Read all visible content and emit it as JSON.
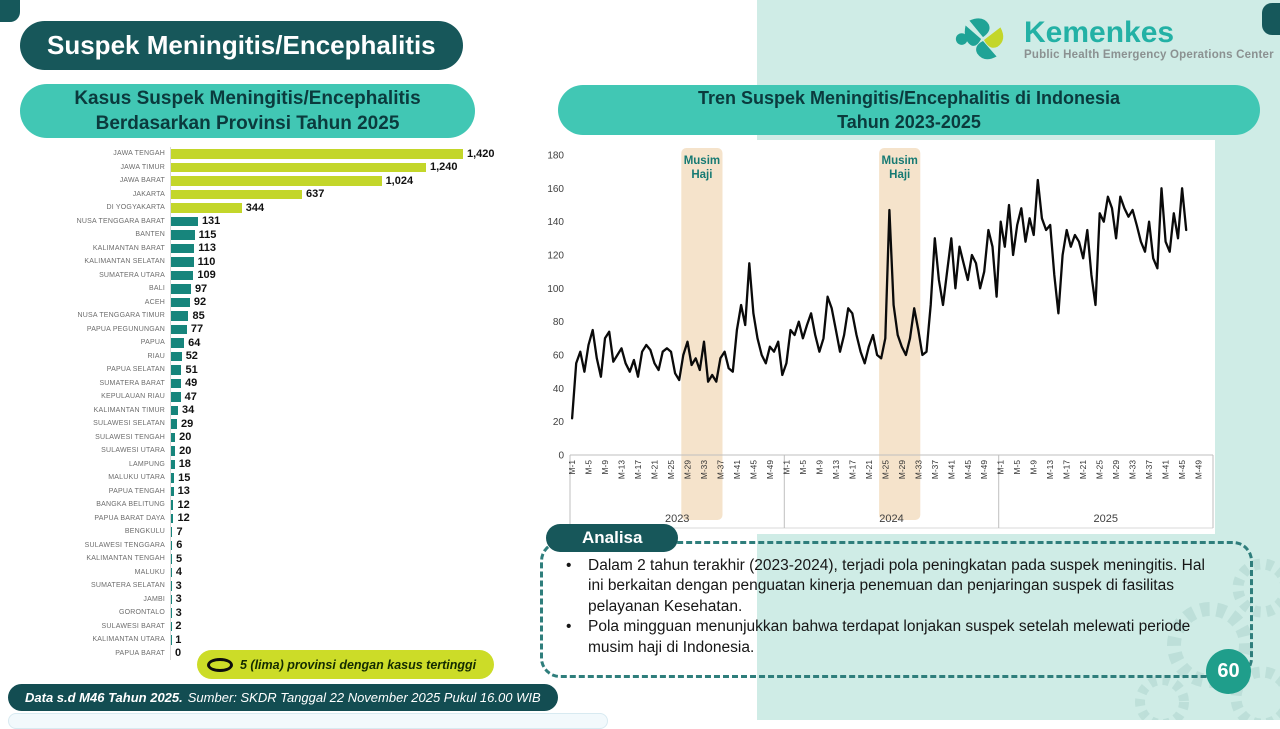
{
  "page": {
    "title": "Suspek Meningitis/Encephalitis",
    "page_number": "60",
    "footer_bold": "Data s.d M46 Tahun 2025.",
    "footer_rest": "Sumber: SKDR Tanggal 22 November 2025 Pukul 16.00 WIB"
  },
  "logo": {
    "name": "Kemenkes",
    "subtitle": "Public Health Emergency Operations Center"
  },
  "left_panel": {
    "title_line1": "Kasus Suspek Meningitis/Encephalitis",
    "title_line2": "Berdasarkan Provinsi Tahun 2025",
    "legend_label": "5 (lima) provinsi dengan kasus tertinggi"
  },
  "right_panel": {
    "title_line1": "Tren Suspek Meningitis/Encephalitis di Indonesia",
    "title_line2": "Tahun 2023-2025"
  },
  "analysis": {
    "header": "Analisa",
    "bullets": [
      "Dalam 2 tahun terakhir (2023-2024), terjadi pola peningkatan pada suspek meningitis. Hal ini berkaitan dengan penguatan kinerja penemuan dan penjaringan suspek di fasilitas pelayanan Kesehatan.",
      "Pola mingguan menunjukkan bahwa terdapat lonjakan suspek setelah melewati periode musim haji di Indonesia."
    ]
  },
  "colors": {
    "dark_teal": "#17575a",
    "accent_teal": "#41c7b4",
    "mint": "#cfece6",
    "bar_green": "#c3d62a",
    "bar_teal": "#17857c",
    "haji_band": "#f5e3cb",
    "haji_text": "#177a73",
    "line": "#0a0a0a",
    "legend_green": "#ccdc28",
    "page_circle": "#1f9e8b"
  },
  "chart_data": [
    {
      "type": "bar",
      "orientation": "horizontal",
      "title": "Kasus Suspek Meningitis/Encephalitis Berdasarkan Provinsi Tahun 2025",
      "highlight_top_n": 5,
      "highlight_note": "5 (lima) provinsi dengan kasus tertinggi",
      "categories": [
        "JAWA TENGAH",
        "JAWA TIMUR",
        "JAWA BARAT",
        "JAKARTA",
        "DI YOGYAKARTA",
        "NUSA TENGGARA BARAT",
        "BANTEN",
        "KALIMANTAN BARAT",
        "KALIMANTAN SELATAN",
        "SUMATERA UTARA",
        "BALI",
        "ACEH",
        "NUSA TENGGARA TIMUR",
        "PAPUA PEGUNUNGAN",
        "PAPUA",
        "RIAU",
        "PAPUA SELATAN",
        "SUMATERA BARAT",
        "KEPULAUAN RIAU",
        "KALIMANTAN TIMUR",
        "SULAWESI SELATAN",
        "SULAWESI TENGAH",
        "SULAWESI UTARA",
        "LAMPUNG",
        "MALUKU UTARA",
        "PAPUA TENGAH",
        "BANGKA BELITUNG",
        "PAPUA BARAT DAYA",
        "BENGKULU",
        "SULAWESI TENGGARA",
        "KALIMANTAN TENGAH",
        "MALUKU",
        "SUMATERA SELATAN",
        "JAMBI",
        "GORONTALO",
        "SULAWESI BARAT",
        "KALIMANTAN UTARA",
        "PAPUA BARAT"
      ],
      "values": [
        1420,
        1240,
        1024,
        637,
        344,
        131,
        115,
        113,
        110,
        109,
        97,
        92,
        85,
        77,
        64,
        52,
        51,
        49,
        47,
        34,
        29,
        20,
        20,
        18,
        15,
        13,
        12,
        12,
        7,
        6,
        5,
        4,
        3,
        3,
        3,
        2,
        1,
        0
      ]
    },
    {
      "type": "line",
      "title": "Tren Suspek Meningitis/Encephalitis di Indonesia Tahun 2023-2025",
      "ylim": [
        0,
        180
      ],
      "ytick_step": 20,
      "grid": false,
      "x_axis": {
        "years": [
          "2023",
          "2024",
          "2025"
        ],
        "weeks_per_year": 52,
        "tick_labels": [
          "M-1",
          "M-5",
          "M-9",
          "M-13",
          "M-17",
          "M-21",
          "M-25",
          "M-29",
          "M-33",
          "M-37",
          "M-41",
          "M-45",
          "M-49"
        ]
      },
      "bands": [
        {
          "label_line1": "Musim",
          "label_line2": "Haji",
          "start_week_index": 27,
          "end_week_index": 37
        },
        {
          "label_line1": "Musim",
          "label_line2": "Haji",
          "start_week_index": 75,
          "end_week_index": 85
        }
      ],
      "series": [
        {
          "name": "2023",
          "values": [
            22,
            55,
            62,
            50,
            66,
            75,
            58,
            47,
            70,
            74,
            56,
            60,
            64,
            55,
            50,
            57,
            47,
            62,
            66,
            63,
            55,
            51,
            62,
            64,
            62,
            49,
            45,
            60,
            68,
            54,
            58,
            51,
            68,
            44,
            48,
            44,
            58,
            62,
            52,
            50,
            75,
            90,
            78,
            115,
            85,
            70,
            60,
            55,
            65,
            62,
            68,
            48
          ]
        },
        {
          "name": "2024",
          "values": [
            55,
            75,
            72,
            80,
            70,
            78,
            85,
            72,
            62,
            70,
            95,
            88,
            75,
            62,
            72,
            88,
            85,
            72,
            62,
            55,
            65,
            72,
            60,
            58,
            70,
            147,
            90,
            72,
            65,
            60,
            70,
            88,
            75,
            60,
            62,
            90,
            130,
            105,
            90,
            110,
            130,
            100,
            125,
            115,
            105,
            120,
            115,
            100,
            110,
            135,
            125,
            95
          ]
        },
        {
          "name": "2025",
          "values": [
            140,
            125,
            150,
            120,
            138,
            148,
            128,
            142,
            132,
            165,
            142,
            135,
            138,
            108,
            85,
            120,
            135,
            125,
            132,
            128,
            118,
            135,
            108,
            90,
            145,
            140,
            155,
            148,
            130,
            155,
            148,
            143,
            147,
            138,
            128,
            122,
            140,
            118,
            112,
            160,
            128,
            122,
            145,
            130,
            160,
            135
          ]
        }
      ]
    }
  ]
}
